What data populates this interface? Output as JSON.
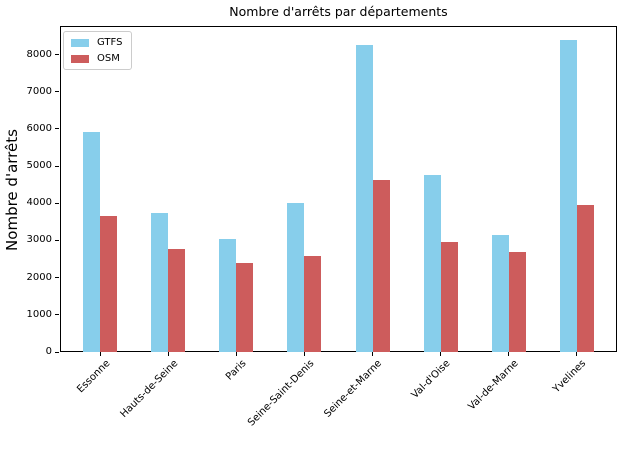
{
  "figure": {
    "title": "Nombre d'arrêts par départements",
    "ylabel": "Nombre d'arrêts"
  },
  "legend": {
    "items": [
      {
        "label": "GTFS",
        "color": "#87CEEB"
      },
      {
        "label": "OSM",
        "color": "#CD5C5C"
      }
    ]
  },
  "chart_data": {
    "type": "bar",
    "title": "Nombre d'arrêts par départements",
    "xlabel": "",
    "ylabel": "Nombre d'arrêts",
    "categories": [
      "Essonne",
      "Hauts-de-Seine",
      "Paris",
      "Seine-Saint-Denis",
      "Seine-et-Marne",
      "Val-d'Oise",
      "Val-de-Marne",
      "Yvelines"
    ],
    "series": [
      {
        "name": "GTFS",
        "color": "#87CEEB",
        "values": [
          5930,
          3750,
          3050,
          4000,
          8260,
          4750,
          3140,
          8390
        ]
      },
      {
        "name": "OSM",
        "color": "#CD5C5C",
        "values": [
          3660,
          2780,
          2400,
          2580,
          4620,
          2960,
          2680,
          3960
        ]
      }
    ],
    "yticks": [
      0,
      1000,
      2000,
      3000,
      4000,
      5000,
      6000,
      7000,
      8000
    ],
    "ylim": [
      0,
      8770
    ],
    "grid": false,
    "legend_position": "upper left",
    "x_tick_rotation": 45
  }
}
